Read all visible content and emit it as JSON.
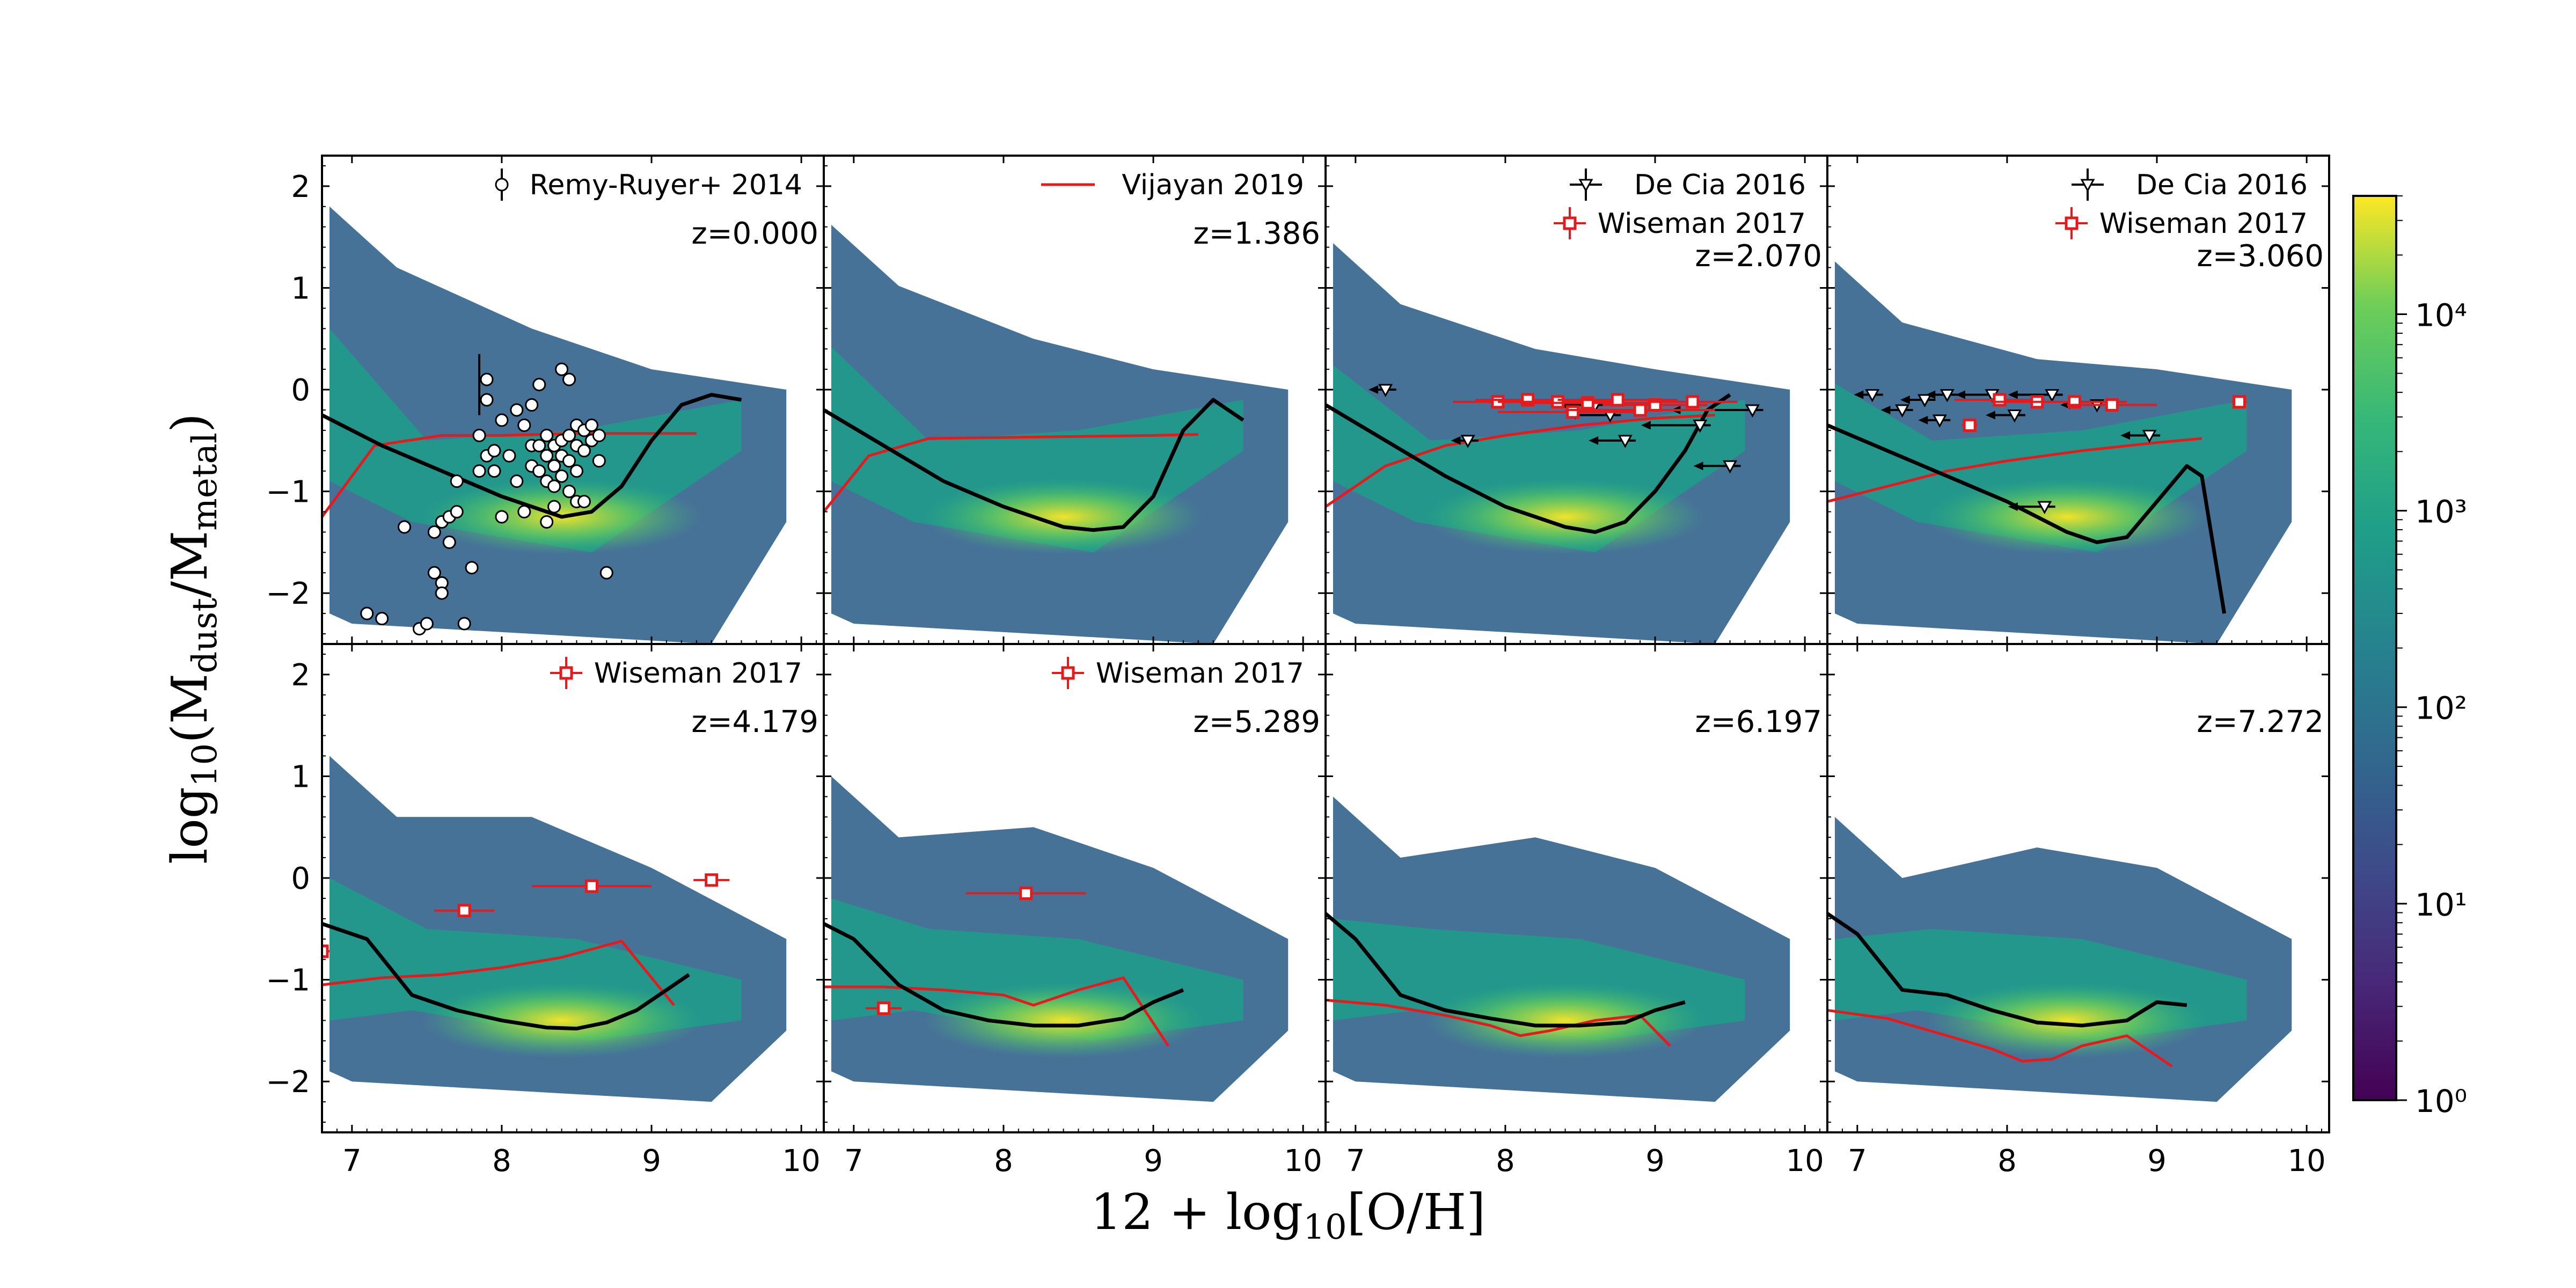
{
  "chart_data": {
    "type": "heatmap",
    "xlabel": "12 + log₁₀[O/H]",
    "ylabel": "log₁₀(M_dust/M_metal)",
    "xlim": [
      6.8,
      10.15
    ],
    "ylim": [
      -2.5,
      2.3
    ],
    "xticks": [
      7,
      8,
      9,
      10
    ],
    "yticks": [
      2,
      1,
      0,
      -1,
      -2
    ],
    "xtick_labels": [
      "7",
      "8",
      "9",
      "10"
    ],
    "ytick_labels": [
      "2",
      "1",
      "0",
      "−1",
      "−2"
    ],
    "colorbar": {
      "scale": "log",
      "min": 1,
      "max": 40000,
      "tick_labels": [
        "10⁴",
        "10³",
        "10²",
        "10¹",
        "10⁰"
      ],
      "tick_values": [
        10000,
        1000,
        100,
        10,
        1
      ]
    },
    "panels": [
      {
        "redshift_label": "z=0.000",
        "legend": [
          {
            "label": "Remy-Ruyer+ 2014",
            "marker": "circle-errorbar"
          }
        ],
        "median": {
          "x": [
            6.8,
            7.2,
            7.6,
            8.0,
            8.4,
            8.6,
            8.8,
            9.0,
            9.2,
            9.4,
            9.6
          ],
          "y": [
            -0.25,
            -0.55,
            -0.8,
            -1.05,
            -1.25,
            -1.2,
            -0.95,
            -0.5,
            -0.15,
            -0.05,
            -0.1
          ]
        },
        "vijayan": {
          "x": [
            6.8,
            7.15,
            7.6,
            8.0,
            8.5,
            9.0,
            9.3
          ],
          "y": [
            -1.25,
            -0.55,
            -0.45,
            -0.45,
            -0.43,
            -0.43,
            -0.43
          ]
        },
        "remy_ruyer": {
          "x": [
            7.1,
            7.2,
            7.35,
            7.45,
            7.5,
            7.55,
            7.6,
            7.65,
            7.6,
            7.65,
            7.7,
            7.75,
            7.8,
            7.85,
            7.9,
            7.85,
            7.9,
            7.95,
            8.0,
            8.05,
            8.1,
            8.15,
            8.2,
            8.2,
            8.25,
            8.25,
            8.3,
            8.3,
            8.3,
            8.35,
            8.35,
            8.35,
            8.4,
            8.4,
            8.4,
            8.45,
            8.45,
            8.5,
            8.5,
            8.5,
            8.55,
            8.55,
            8.6,
            8.6,
            8.65,
            8.65,
            8.3,
            8.4,
            8.45,
            8.5,
            8.2,
            8.1,
            8.15,
            8.25,
            8.35,
            8.45,
            8.55,
            7.95,
            7.9,
            8.0,
            8.7,
            7.6,
            7.55,
            7.7
          ],
          "y": [
            -2.2,
            -2.25,
            -1.35,
            -2.35,
            -2.3,
            -1.4,
            -1.3,
            -1.25,
            -1.9,
            -1.5,
            -1.2,
            -2.3,
            -1.75,
            -0.8,
            -0.1,
            -0.45,
            -0.65,
            -0.8,
            -0.3,
            -0.65,
            -0.9,
            -1.2,
            -0.55,
            -0.75,
            -0.55,
            -0.8,
            -0.45,
            -0.65,
            -0.9,
            -0.55,
            -0.75,
            -0.95,
            -0.5,
            -0.65,
            -0.85,
            -0.45,
            -0.7,
            -0.35,
            -0.55,
            -0.8,
            -0.4,
            -0.6,
            -0.35,
            -0.5,
            -0.45,
            -0.7,
            -1.3,
            0.2,
            0.1,
            -1.1,
            -0.15,
            -0.2,
            -0.35,
            0.05,
            -1.15,
            -1.0,
            -1.1,
            -0.6,
            0.1,
            -1.25,
            -1.8,
            -2.0,
            -1.8,
            -0.9
          ],
          "errorbar_example": {
            "x": 7.85,
            "y": 0.05,
            "yerr": 0.3
          }
        }
      },
      {
        "redshift_label": "z=1.386",
        "legend": [
          {
            "label": "Vijayan 2019",
            "marker": "red-line"
          }
        ],
        "median": {
          "x": [
            6.8,
            7.2,
            7.6,
            8.0,
            8.4,
            8.6,
            8.8,
            9.0,
            9.2,
            9.4,
            9.6
          ],
          "y": [
            -0.2,
            -0.55,
            -0.9,
            -1.15,
            -1.35,
            -1.38,
            -1.35,
            -1.05,
            -0.4,
            -0.1,
            -0.3
          ]
        },
        "vijayan": {
          "x": [
            6.8,
            7.1,
            7.5,
            8.0,
            8.5,
            9.0,
            9.3
          ],
          "y": [
            -1.2,
            -0.65,
            -0.48,
            -0.47,
            -0.46,
            -0.45,
            -0.44
          ]
        }
      },
      {
        "redshift_label": "z=2.070",
        "legend": [
          {
            "label": "De Cia 2016",
            "marker": "triangle-errorbar"
          },
          {
            "label": "Wiseman 2017",
            "marker": "square-errorbar"
          }
        ],
        "median": {
          "x": [
            6.8,
            7.2,
            7.6,
            8.0,
            8.4,
            8.6,
            8.8,
            9.0,
            9.2,
            9.35,
            9.5
          ],
          "y": [
            -0.15,
            -0.5,
            -0.85,
            -1.15,
            -1.35,
            -1.4,
            -1.3,
            -1.0,
            -0.6,
            -0.2,
            -0.05
          ]
        },
        "vijayan": {
          "x": [
            6.8,
            7.2,
            7.6,
            8.0,
            8.5,
            9.0,
            9.4
          ],
          "y": [
            -1.15,
            -0.75,
            -0.55,
            -0.45,
            -0.35,
            -0.28,
            -0.25
          ]
        },
        "de_cia": {
          "x": [
            7.2,
            7.75,
            8.8,
            9.3,
            9.5,
            9.65,
            8.7,
            8.6
          ],
          "y": [
            0.0,
            -0.5,
            -0.5,
            -0.35,
            -0.75,
            -0.2,
            -0.25,
            -0.15
          ],
          "xerr": [
            0.07,
            0.07,
            0.2,
            0.35,
            0.2,
            0.5,
            0.25,
            0.2
          ]
        },
        "wiseman": {
          "x": [
            7.95,
            8.15,
            8.35,
            8.55,
            8.75,
            9.0,
            9.25,
            8.45,
            8.9
          ],
          "y": [
            -0.12,
            -0.1,
            -0.12,
            -0.13,
            -0.1,
            -0.15,
            -0.12,
            -0.22,
            -0.2
          ],
          "xerr": [
            0.3,
            0.35,
            0.4,
            0.45,
            0.4,
            0.35,
            0.3,
            0.5,
            0.5
          ]
        }
      },
      {
        "redshift_label": "z=3.060",
        "legend": [
          {
            "label": "De Cia 2016",
            "marker": "triangle-errorbar"
          },
          {
            "label": "Wiseman 2017",
            "marker": "square-errorbar"
          }
        ],
        "median": {
          "x": [
            6.8,
            7.2,
            7.6,
            8.0,
            8.4,
            8.6,
            8.8,
            9.0,
            9.2,
            9.3,
            9.45
          ],
          "y": [
            -0.35,
            -0.6,
            -0.85,
            -1.1,
            -1.4,
            -1.5,
            -1.45,
            -1.1,
            -0.75,
            -0.85,
            -2.2
          ]
        },
        "vijayan": {
          "x": [
            6.8,
            7.2,
            7.6,
            8.0,
            8.5,
            9.0,
            9.3
          ],
          "y": [
            -1.1,
            -0.95,
            -0.8,
            -0.7,
            -0.6,
            -0.52,
            -0.48
          ]
        },
        "de_cia": {
          "x": [
            7.1,
            7.3,
            7.45,
            7.6,
            7.9,
            8.05,
            8.3,
            8.6,
            8.95,
            8.25,
            7.55
          ],
          "y": [
            -0.05,
            -0.2,
            -0.1,
            -0.05,
            -0.05,
            -0.25,
            -0.05,
            -0.15,
            -0.45,
            -1.15,
            -0.3
          ],
          "xerr": [
            0.08,
            0.1,
            0.12,
            0.1,
            0.2,
            0.15,
            0.25,
            0.2,
            0.15,
            0.2,
            0.1
          ]
        },
        "wiseman": {
          "x": [
            7.95,
            8.2,
            8.45,
            8.7,
            9.55,
            7.75
          ],
          "y": [
            -0.1,
            -0.12,
            -0.12,
            -0.15,
            -0.12,
            -0.35
          ],
          "xerr": [
            0.3,
            0.3,
            0.35,
            0.3,
            0.05,
            0.05
          ]
        }
      },
      {
        "redshift_label": "z=4.179",
        "legend": [
          {
            "label": "Wiseman 2017",
            "marker": "square-errorbar"
          }
        ],
        "median": {
          "x": [
            6.8,
            7.1,
            7.4,
            7.7,
            8.0,
            8.3,
            8.5,
            8.7,
            8.9,
            9.1,
            9.25
          ],
          "y": [
            -0.45,
            -0.6,
            -1.15,
            -1.3,
            -1.4,
            -1.47,
            -1.48,
            -1.42,
            -1.3,
            -1.1,
            -0.95
          ]
        },
        "vijayan": {
          "x": [
            6.8,
            7.2,
            7.6,
            8.0,
            8.4,
            8.8,
            9.15
          ],
          "y": [
            -1.05,
            -0.98,
            -0.95,
            -0.88,
            -0.78,
            -0.62,
            -1.25
          ]
        },
        "wiseman": {
          "x": [
            7.75,
            8.6,
            9.4,
            6.8
          ],
          "y": [
            -0.32,
            -0.08,
            -0.02,
            -0.72
          ],
          "xerr": [
            0.2,
            0.4,
            0.12,
            0.05
          ]
        }
      },
      {
        "redshift_label": "z=5.289",
        "legend": [
          {
            "label": "Wiseman 2017",
            "marker": "square-errorbar"
          }
        ],
        "median": {
          "x": [
            6.8,
            7.0,
            7.3,
            7.6,
            7.9,
            8.2,
            8.5,
            8.8,
            9.0,
            9.2
          ],
          "y": [
            -0.45,
            -0.6,
            -1.05,
            -1.3,
            -1.4,
            -1.45,
            -1.45,
            -1.38,
            -1.22,
            -1.1
          ]
        },
        "vijayan": {
          "x": [
            6.8,
            7.2,
            7.6,
            8.0,
            8.2,
            8.5,
            8.8,
            9.1
          ],
          "y": [
            -1.07,
            -1.07,
            -1.1,
            -1.15,
            -1.25,
            -1.1,
            -0.98,
            -1.65
          ]
        },
        "wiseman": {
          "x": [
            8.15,
            7.2
          ],
          "y": [
            -0.15,
            -1.28
          ],
          "xerr": [
            0.4,
            0.12
          ]
        }
      },
      {
        "redshift_label": "z=6.197",
        "legend": [],
        "median": {
          "x": [
            6.8,
            7.0,
            7.3,
            7.6,
            7.9,
            8.2,
            8.5,
            8.8,
            9.0,
            9.2
          ],
          "y": [
            -0.35,
            -0.6,
            -1.15,
            -1.3,
            -1.38,
            -1.45,
            -1.45,
            -1.42,
            -1.3,
            -1.22
          ]
        },
        "vijayan": {
          "x": [
            6.8,
            7.2,
            7.6,
            7.9,
            8.1,
            8.3,
            8.6,
            8.9,
            9.1
          ],
          "y": [
            -1.2,
            -1.25,
            -1.35,
            -1.45,
            -1.55,
            -1.5,
            -1.4,
            -1.35,
            -1.65
          ]
        }
      },
      {
        "redshift_label": "z=7.272",
        "legend": [],
        "median": {
          "x": [
            6.8,
            7.0,
            7.3,
            7.6,
            7.9,
            8.2,
            8.5,
            8.8,
            9.0,
            9.2
          ],
          "y": [
            -0.35,
            -0.55,
            -1.1,
            -1.15,
            -1.3,
            -1.42,
            -1.45,
            -1.4,
            -1.22,
            -1.25
          ]
        },
        "vijayan": {
          "x": [
            6.8,
            7.2,
            7.6,
            7.9,
            8.1,
            8.3,
            8.5,
            8.8,
            9.1
          ],
          "y": [
            -1.3,
            -1.38,
            -1.55,
            -1.68,
            -1.8,
            -1.78,
            -1.65,
            -1.55,
            -1.85
          ]
        }
      }
    ]
  }
}
